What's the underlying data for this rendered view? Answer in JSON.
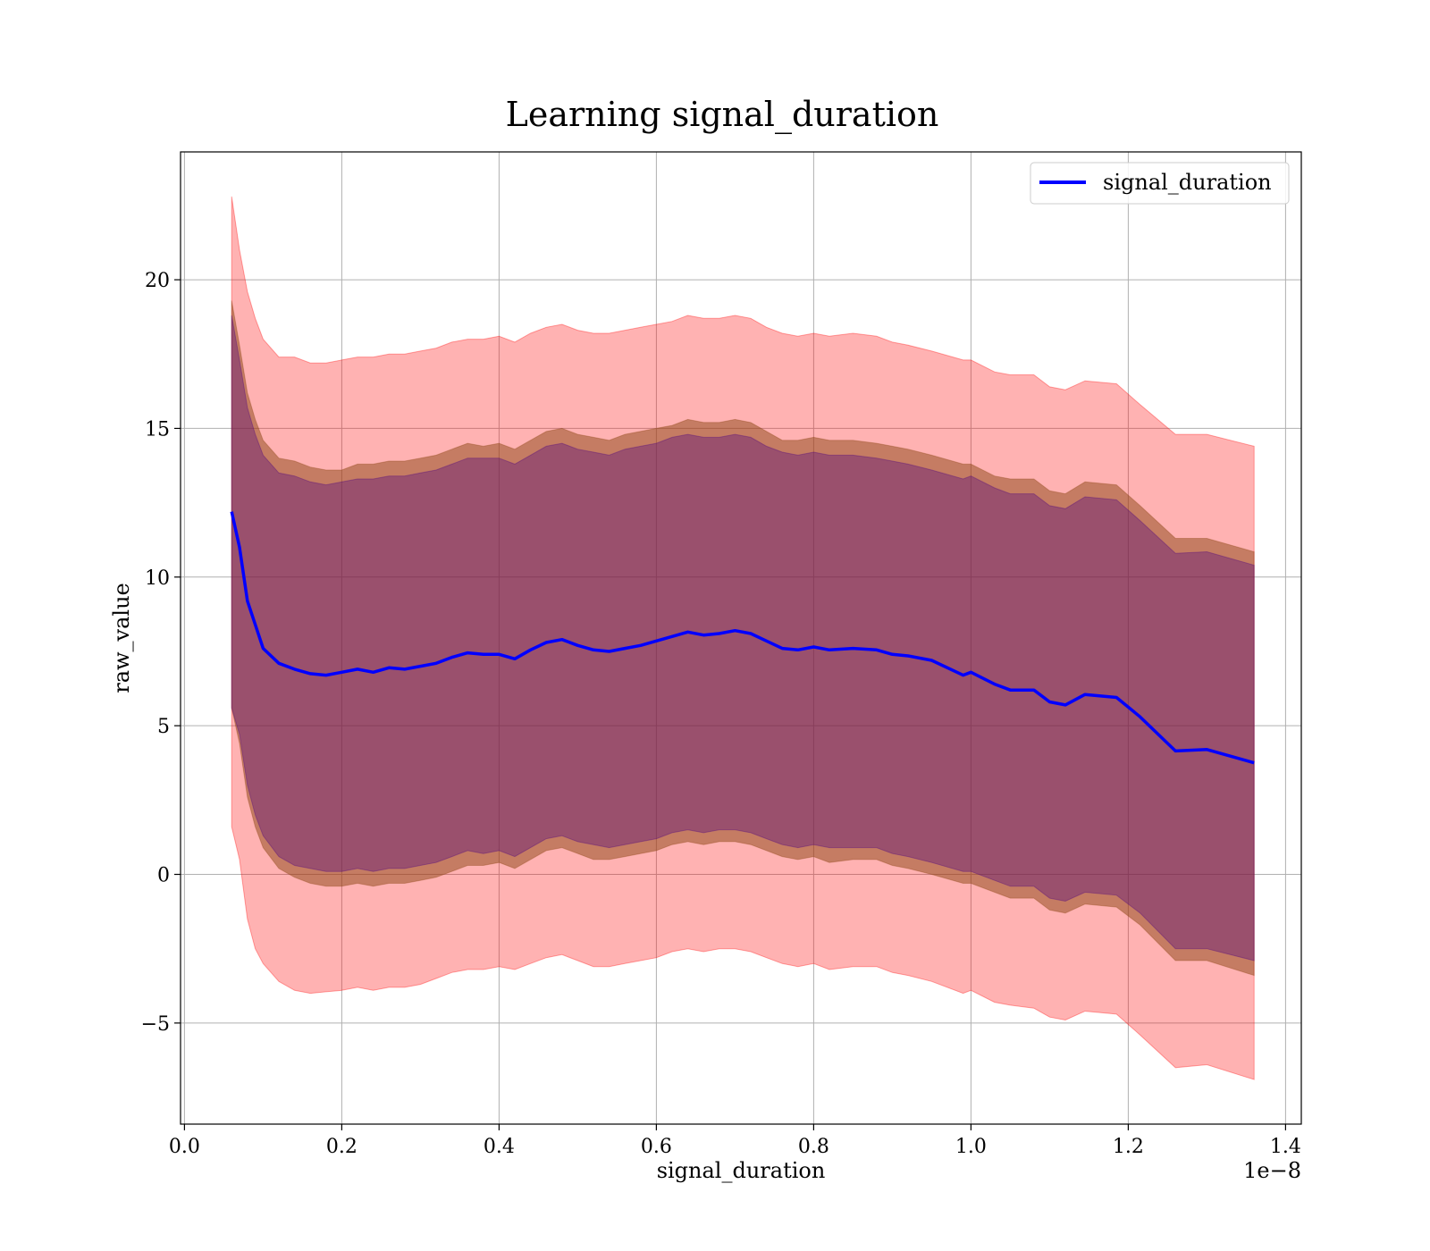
{
  "chart_data": {
    "type": "line",
    "title": "Learning signal_duration",
    "xlabel": "signal_duration",
    "ylabel": "raw_value",
    "x_offset_label": "1e−8",
    "xlim": [
      -0.005,
      1.42
    ],
    "ylim": [
      -8.4,
      24.3
    ],
    "x_ticks": [
      0.0,
      0.2,
      0.4,
      0.6,
      0.8,
      1.0,
      1.2,
      1.4
    ],
    "x_tick_labels": [
      "0.0",
      "0.2",
      "0.4",
      "0.6",
      "0.8",
      "1.0",
      "1.2",
      "1.4"
    ],
    "y_ticks": [
      -5,
      0,
      5,
      10,
      15,
      20
    ],
    "y_tick_labels": [
      "−5",
      "0",
      "5",
      "10",
      "15",
      "20"
    ],
    "grid": true,
    "legend_position": "top-right",
    "colors": {
      "line": "#0000ff",
      "outer_band": "#ff0000",
      "middle_band": "#8b4513",
      "inner_band": "#4b0082"
    },
    "x": [
      0.06,
      0.07,
      0.08,
      0.09,
      0.1,
      0.12,
      0.14,
      0.16,
      0.18,
      0.2,
      0.22,
      0.24,
      0.26,
      0.28,
      0.3,
      0.32,
      0.34,
      0.36,
      0.38,
      0.4,
      0.42,
      0.44,
      0.46,
      0.48,
      0.5,
      0.52,
      0.54,
      0.56,
      0.58,
      0.6,
      0.62,
      0.64,
      0.66,
      0.68,
      0.7,
      0.72,
      0.74,
      0.76,
      0.78,
      0.8,
      0.82,
      0.85,
      0.88,
      0.9,
      0.92,
      0.95,
      0.99,
      1.0,
      1.03,
      1.05,
      1.08,
      1.1,
      1.12,
      1.145,
      1.185,
      1.215,
      1.26,
      1.3,
      1.36
    ],
    "series": [
      {
        "name": "signal_duration",
        "values": [
          12.2,
          11.0,
          9.2,
          8.4,
          7.6,
          7.1,
          6.9,
          6.75,
          6.7,
          6.8,
          6.9,
          6.8,
          6.95,
          6.9,
          7.0,
          7.1,
          7.3,
          7.45,
          7.4,
          7.4,
          7.25,
          7.55,
          7.8,
          7.9,
          7.7,
          7.55,
          7.5,
          7.6,
          7.7,
          7.85,
          8.0,
          8.15,
          8.05,
          8.1,
          8.2,
          8.1,
          7.85,
          7.6,
          7.55,
          7.65,
          7.55,
          7.6,
          7.55,
          7.4,
          7.35,
          7.2,
          6.7,
          6.8,
          6.4,
          6.2,
          6.2,
          5.8,
          5.7,
          6.05,
          5.95,
          5.3,
          4.15,
          4.2,
          3.75
        ]
      }
    ],
    "bands": [
      {
        "name": "outer",
        "upper": [
          22.8,
          21.0,
          19.6,
          18.7,
          18.0,
          17.4,
          17.4,
          17.2,
          17.2,
          17.3,
          17.4,
          17.4,
          17.5,
          17.5,
          17.6,
          17.7,
          17.9,
          18.0,
          18.0,
          18.1,
          17.9,
          18.2,
          18.4,
          18.5,
          18.3,
          18.2,
          18.2,
          18.3,
          18.4,
          18.5,
          18.6,
          18.8,
          18.7,
          18.7,
          18.8,
          18.7,
          18.4,
          18.2,
          18.1,
          18.2,
          18.1,
          18.2,
          18.1,
          17.9,
          17.8,
          17.6,
          17.3,
          17.3,
          16.9,
          16.8,
          16.8,
          16.4,
          16.3,
          16.6,
          16.5,
          15.8,
          14.8,
          14.8,
          14.4
        ],
        "lower": [
          1.6,
          0.5,
          -1.5,
          -2.5,
          -3.0,
          -3.6,
          -3.9,
          -4.0,
          -3.95,
          -3.9,
          -3.8,
          -3.9,
          -3.8,
          -3.8,
          -3.7,
          -3.5,
          -3.3,
          -3.2,
          -3.2,
          -3.1,
          -3.2,
          -3.0,
          -2.8,
          -2.7,
          -2.9,
          -3.1,
          -3.1,
          -3.0,
          -2.9,
          -2.8,
          -2.6,
          -2.5,
          -2.6,
          -2.5,
          -2.5,
          -2.6,
          -2.8,
          -3.0,
          -3.1,
          -3.0,
          -3.2,
          -3.1,
          -3.1,
          -3.3,
          -3.4,
          -3.6,
          -4.0,
          -3.9,
          -4.3,
          -4.4,
          -4.5,
          -4.8,
          -4.9,
          -4.6,
          -4.7,
          -5.4,
          -6.5,
          -6.4,
          -6.9
        ]
      },
      {
        "name": "middle",
        "upper": [
          19.3,
          17.8,
          16.2,
          15.3,
          14.6,
          14.0,
          13.9,
          13.7,
          13.6,
          13.6,
          13.8,
          13.8,
          13.9,
          13.9,
          14.0,
          14.1,
          14.3,
          14.5,
          14.4,
          14.5,
          14.3,
          14.6,
          14.9,
          15.0,
          14.8,
          14.7,
          14.6,
          14.8,
          14.9,
          15.0,
          15.1,
          15.3,
          15.2,
          15.2,
          15.3,
          15.2,
          14.9,
          14.6,
          14.6,
          14.7,
          14.6,
          14.6,
          14.5,
          14.4,
          14.3,
          14.1,
          13.8,
          13.8,
          13.4,
          13.3,
          13.3,
          12.9,
          12.8,
          13.2,
          13.1,
          12.4,
          11.3,
          11.3,
          10.85
        ],
        "lower": [
          5.6,
          4.4,
          2.6,
          1.6,
          0.9,
          0.2,
          -0.1,
          -0.3,
          -0.4,
          -0.4,
          -0.3,
          -0.4,
          -0.3,
          -0.3,
          -0.2,
          -0.1,
          0.1,
          0.3,
          0.3,
          0.4,
          0.2,
          0.5,
          0.8,
          0.9,
          0.7,
          0.5,
          0.5,
          0.6,
          0.7,
          0.8,
          1.0,
          1.1,
          1.0,
          1.1,
          1.1,
          1.0,
          0.8,
          0.6,
          0.5,
          0.6,
          0.4,
          0.5,
          0.5,
          0.3,
          0.2,
          0.0,
          -0.3,
          -0.3,
          -0.6,
          -0.8,
          -0.8,
          -1.2,
          -1.3,
          -1.0,
          -1.1,
          -1.7,
          -2.9,
          -2.9,
          -3.4
        ]
      },
      {
        "name": "inner",
        "upper": [
          18.8,
          17.3,
          15.7,
          14.8,
          14.1,
          13.5,
          13.4,
          13.2,
          13.1,
          13.2,
          13.3,
          13.3,
          13.4,
          13.4,
          13.5,
          13.6,
          13.8,
          14.0,
          14.0,
          14.0,
          13.8,
          14.1,
          14.4,
          14.5,
          14.3,
          14.2,
          14.1,
          14.3,
          14.4,
          14.5,
          14.7,
          14.8,
          14.7,
          14.7,
          14.8,
          14.7,
          14.4,
          14.2,
          14.1,
          14.2,
          14.1,
          14.1,
          14.0,
          13.9,
          13.8,
          13.6,
          13.3,
          13.4,
          13.0,
          12.8,
          12.8,
          12.4,
          12.3,
          12.7,
          12.6,
          11.9,
          10.8,
          10.85,
          10.4
        ],
        "lower": [
          5.6,
          4.7,
          3.0,
          2.0,
          1.3,
          0.6,
          0.3,
          0.2,
          0.1,
          0.1,
          0.2,
          0.1,
          0.2,
          0.2,
          0.3,
          0.4,
          0.6,
          0.8,
          0.7,
          0.8,
          0.6,
          0.9,
          1.2,
          1.3,
          1.1,
          1.0,
          0.9,
          1.0,
          1.1,
          1.2,
          1.4,
          1.5,
          1.4,
          1.5,
          1.5,
          1.4,
          1.2,
          1.0,
          0.9,
          1.0,
          0.9,
          0.9,
          0.9,
          0.7,
          0.6,
          0.4,
          0.1,
          0.1,
          -0.2,
          -0.4,
          -0.4,
          -0.8,
          -0.9,
          -0.6,
          -0.7,
          -1.3,
          -2.5,
          -2.5,
          -2.9
        ]
      }
    ]
  }
}
